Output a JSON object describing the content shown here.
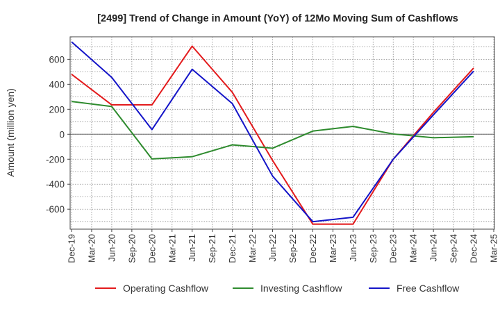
{
  "chart_data": {
    "type": "line",
    "title": "[2499]  Trend of Change in Amount (YoY) of 12Mo Moving Sum of Cashflows",
    "ylabel": "Amount (million yen)",
    "xlabel": "",
    "ylim": [
      -760,
      780
    ],
    "yticks": [
      600,
      400,
      200,
      0,
      -200,
      -400,
      -600
    ],
    "ytick_labels": [
      "600",
      "400",
      "200",
      "0",
      "-200",
      "-400",
      "-600"
    ],
    "categories": [
      "Dec-19",
      "Mar-20",
      "Jun-20",
      "Sep-20",
      "Dec-20",
      "Mar-21",
      "Jun-21",
      "Sep-21",
      "Dec-21",
      "Mar-22",
      "Jun-22",
      "Sep-22",
      "Dec-22",
      "Mar-23",
      "Jun-23",
      "Sep-23",
      "Dec-23",
      "Mar-24",
      "Jun-24",
      "Sep-24",
      "Dec-24",
      "Mar-25"
    ],
    "series": [
      {
        "name": "Operating Cashflow",
        "color": "#e31a1c",
        "values": [
          480,
          null,
          235,
          null,
          235,
          null,
          705,
          null,
          335,
          null,
          -210,
          null,
          -720,
          null,
          -720,
          null,
          -200,
          null,
          175,
          null,
          530,
          null
        ]
      },
      {
        "name": "Investing Cashflow",
        "color": "#2e8b2e",
        "values": [
          262,
          null,
          222,
          null,
          -198,
          null,
          -180,
          null,
          -85,
          null,
          -112,
          null,
          25,
          null,
          63,
          null,
          2,
          null,
          -28,
          null,
          -20,
          null
        ]
      },
      {
        "name": "Free Cashflow",
        "color": "#1414c8",
        "values": [
          740,
          null,
          455,
          null,
          37,
          null,
          520,
          null,
          245,
          null,
          -335,
          null,
          -700,
          null,
          -665,
          null,
          -200,
          null,
          155,
          null,
          505,
          null
        ]
      }
    ]
  }
}
